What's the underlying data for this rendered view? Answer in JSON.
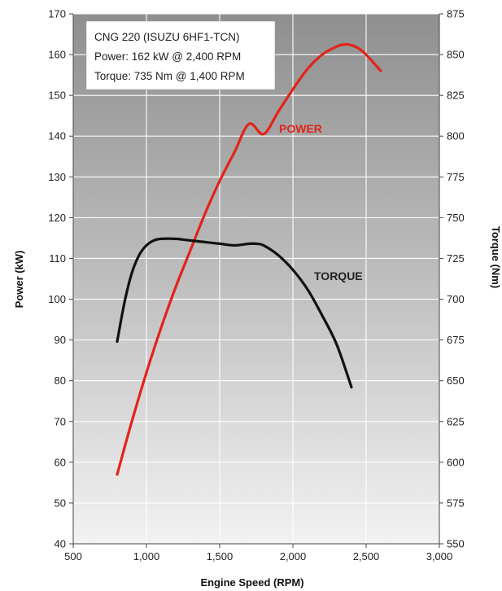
{
  "chart_data": {
    "type": "line",
    "info_box": {
      "lines": [
        "CNG 220 (ISUZU 6HF1-TCN)",
        "Power: 162 kW @ 2,400 RPM",
        "Torque: 735 Nm @ 1,400 RPM"
      ]
    },
    "xlabel": "Engine Speed (RPM)",
    "ylabel_left": "Power (kW)",
    "ylabel_right": "Torque (Nm)",
    "xlim": [
      500,
      3000
    ],
    "ylim_left": [
      40,
      170
    ],
    "ylim_right": [
      550,
      875
    ],
    "x_ticks": [
      "500",
      "1,000",
      "1,500",
      "2,000",
      "2,500",
      "3,000"
    ],
    "y_left_ticks": [
      "40",
      "50",
      "60",
      "70",
      "80",
      "90",
      "100",
      "110",
      "120",
      "130",
      "140",
      "150",
      "160",
      "170"
    ],
    "y_right_ticks": [
      "550",
      "575",
      "600",
      "625",
      "650",
      "675",
      "700",
      "725",
      "750",
      "775",
      "800",
      "825",
      "850",
      "875"
    ],
    "grid": true,
    "colors": {
      "power": "#e2231a",
      "torque": "#111111"
    },
    "series": [
      {
        "name": "POWER",
        "axis": "left",
        "x": [
          800,
          900,
          1000,
          1100,
          1200,
          1300,
          1400,
          1500,
          1600,
          1700,
          1800,
          1900,
          2000,
          2100,
          2200,
          2300,
          2350,
          2400,
          2450,
          2500,
          2600
        ],
        "y": [
          57,
          70,
          82,
          93,
          103,
          112,
          121,
          129,
          136,
          143,
          140.5,
          146,
          151.5,
          156.5,
          160,
          162,
          162.5,
          162.3,
          161.5,
          160,
          156
        ]
      },
      {
        "name": "TORQUE",
        "axis": "right",
        "x": [
          800,
          850,
          900,
          950,
          1000,
          1050,
          1100,
          1200,
          1300,
          1400,
          1500,
          1600,
          1700,
          1750,
          1800,
          1900,
          2000,
          2100,
          2200,
          2300,
          2400
        ],
        "y": [
          674,
          698,
          716,
          727,
          733,
          736,
          737,
          737,
          736,
          735,
          734,
          733,
          734,
          734,
          733,
          727,
          718,
          706,
          690,
          672,
          646
        ]
      }
    ],
    "annotations": [
      {
        "text": "POWER",
        "series": "POWER"
      },
      {
        "text": "TORQUE",
        "series": "TORQUE"
      }
    ]
  }
}
